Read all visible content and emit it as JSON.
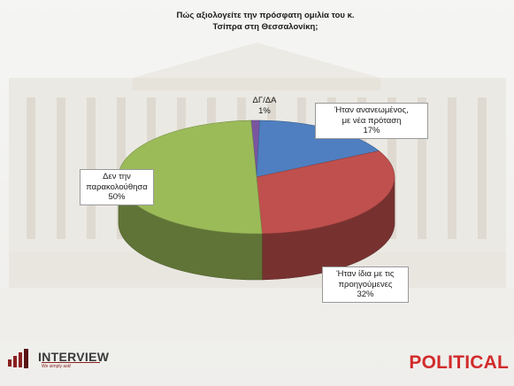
{
  "title": {
    "line1": "Πώς αξιολογείτε την πρόσφατη ομιλία του κ.",
    "line2": "Τσίπρα στη Θεσσαλονίκη;"
  },
  "chart_data": {
    "type": "pie",
    "style": "3d",
    "title": "Πώς αξιολογείτε την πρόσφατη ομιλία του κ. Τσίπρα στη Θεσσαλονίκη;",
    "slices": [
      {
        "label": "ΔΓ/ΔΑ",
        "value": 1,
        "value_label": "1%",
        "color": "#7a55a0"
      },
      {
        "label": "Ήταν ανανεωμένος, με νέα πρόταση",
        "value": 17,
        "value_label": "17%",
        "color": "#4f7fc0"
      },
      {
        "label": "Ήταν ίδια με τις προηγούμενες",
        "value": 32,
        "value_label": "32%",
        "color": "#c0504d"
      },
      {
        "label": "Δεν την παρακολούθησα",
        "value": 50,
        "value_label": "50%",
        "color": "#9bbb59"
      }
    ]
  },
  "labels": {
    "dgda": {
      "l1": "ΔΓ/ΔΑ",
      "l2": "1%"
    },
    "renewed": {
      "l1": "Ήταν ανανεωμένος,",
      "l2": "με νέα πρόταση",
      "l3": "17%"
    },
    "same": {
      "l1": "Ήταν ίδια με τις",
      "l2": "προηγούμενες",
      "l3": "32%"
    },
    "notwatched": {
      "l1": "Δεν την",
      "l2": "παρακολούθησα",
      "l3": "50%"
    }
  },
  "branding": {
    "left_logo": "INTERVIEW",
    "left_tagline": "We simply ask!",
    "right_logo": "POLITICAL"
  },
  "colors": {
    "brand_red": "#d22b2b",
    "background": "#f3f3f1"
  }
}
